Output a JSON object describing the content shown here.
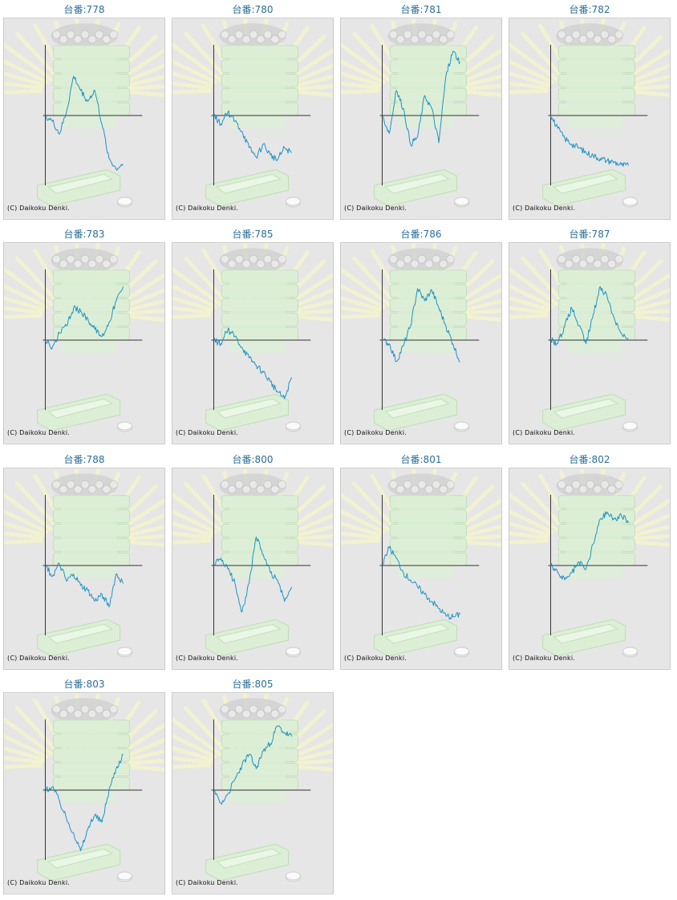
{
  "colors": {
    "title": "#2b6e98",
    "line": "#1e92c4",
    "axis": "#333333",
    "panel_bg": "#e6e6e6",
    "rays": "#f4f4cf",
    "machine": "#dcefd6",
    "machine_edge": "#c2dfba",
    "balls": "#cfcfcf",
    "border": "#c9c9c9"
  },
  "copyright": "(C) Daikoku Denki.",
  "machines": [
    {
      "title": "台番:778",
      "chart_data": {
        "type": "line",
        "values": [
          0,
          -8,
          -26,
          5,
          55,
          35,
          20,
          35,
          -12,
          -60,
          -75,
          -68
        ]
      }
    },
    {
      "title": "台番:780",
      "chart_data": {
        "type": "line",
        "values": [
          0,
          -12,
          5,
          -8,
          -22,
          -45,
          -58,
          -40,
          -55,
          -62,
          -45,
          -52
        ]
      }
    },
    {
      "title": "台番:781",
      "chart_data": {
        "type": "line",
        "values": [
          0,
          -25,
          35,
          10,
          -40,
          -30,
          28,
          10,
          -38,
          55,
          90,
          75
        ]
      }
    },
    {
      "title": "台番:782",
      "chart_data": {
        "type": "line",
        "values": [
          0,
          -18,
          -32,
          -40,
          -45,
          -52,
          -56,
          -60,
          -63,
          -65,
          -69,
          -70
        ]
      }
    },
    {
      "title": "台番:783",
      "chart_data": {
        "type": "line",
        "values": [
          0,
          -10,
          10,
          20,
          45,
          40,
          30,
          15,
          5,
          25,
          55,
          75
        ]
      }
    },
    {
      "title": "台番:785",
      "chart_data": {
        "type": "line",
        "values": [
          0,
          -5,
          15,
          5,
          -10,
          -25,
          -35,
          -45,
          -58,
          -72,
          -82,
          -52
        ]
      }
    },
    {
      "title": "台番:786",
      "chart_data": {
        "type": "line",
        "values": [
          0,
          -5,
          -30,
          -8,
          20,
          72,
          55,
          70,
          45,
          20,
          -5,
          -30
        ]
      }
    },
    {
      "title": "台番:787",
      "chart_data": {
        "type": "line",
        "values": [
          0,
          -5,
          20,
          45,
          20,
          -5,
          35,
          75,
          60,
          30,
          10,
          0
        ]
      }
    },
    {
      "title": "台番:788",
      "chart_data": {
        "type": "line",
        "values": [
          0,
          -15,
          2,
          -22,
          -12,
          -28,
          -35,
          -50,
          -40,
          -58,
          -12,
          -25
        ]
      }
    },
    {
      "title": "台番:800",
      "chart_data": {
        "type": "line",
        "values": [
          0,
          10,
          -5,
          -25,
          -65,
          -25,
          40,
          15,
          -10,
          -20,
          -50,
          -30
        ]
      }
    },
    {
      "title": "台番:801",
      "chart_data": {
        "type": "line",
        "values": [
          0,
          25,
          10,
          -10,
          -20,
          -30,
          -40,
          -50,
          -60,
          -70,
          -72,
          -68
        ]
      }
    },
    {
      "title": "台番:802",
      "chart_data": {
        "type": "line",
        "values": [
          0,
          -10,
          -20,
          -10,
          5,
          -5,
          30,
          65,
          75,
          65,
          70,
          60
        ]
      }
    },
    {
      "title": "台番:803",
      "chart_data": {
        "type": "line",
        "values": [
          0,
          5,
          -15,
          -40,
          -60,
          -85,
          -55,
          -35,
          -45,
          0,
          30,
          50
        ]
      }
    },
    {
      "title": "台番:805",
      "chart_data": {
        "type": "line",
        "values": [
          0,
          -18,
          -5,
          15,
          35,
          50,
          30,
          55,
          65,
          90,
          80,
          75
        ]
      }
    }
  ]
}
